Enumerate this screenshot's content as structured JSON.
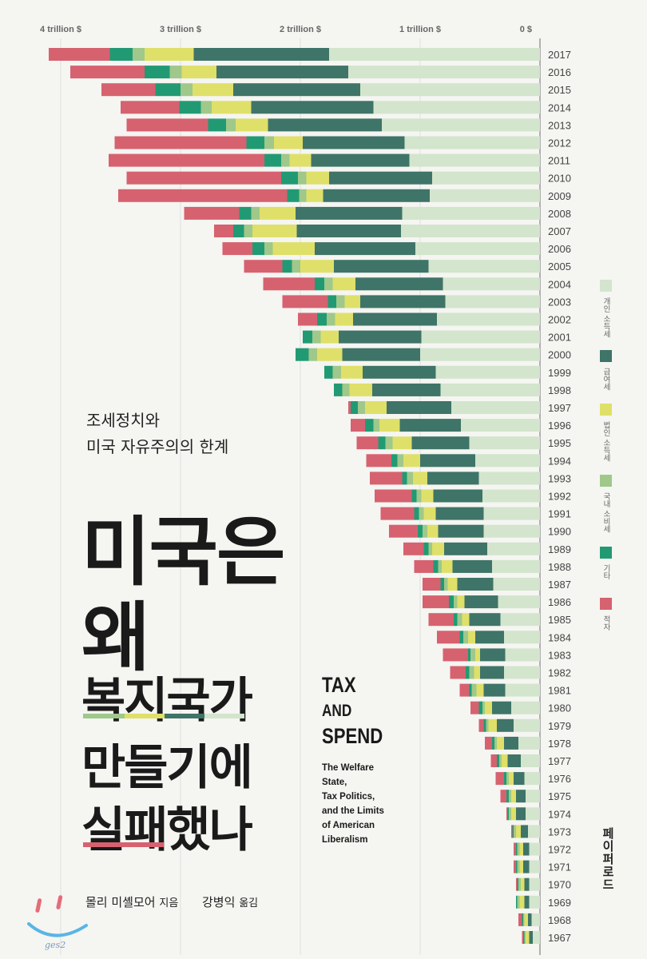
{
  "title": {
    "subtitle_line1": "조세정치와",
    "subtitle_line2": "미국 자유주의의 한계",
    "line1": "미국은",
    "line2": "왜",
    "line3": "복지국가",
    "line4": "만들기에",
    "line5": "실패했나"
  },
  "english": {
    "tax": "TAX",
    "and": "AND",
    "spend": "SPEND",
    "sub1": "The Welfare",
    "sub2": "State,",
    "sub3": "Tax Politics,",
    "sub4": "and the Limits",
    "sub5": "of American",
    "sub6": "Liberalism"
  },
  "credits": {
    "author": "몰리 미셸모어",
    "author_role": "지음",
    "translator": "강병익",
    "translator_role": "옮김"
  },
  "publisher": "페이퍼로드",
  "logo_text": "ges2",
  "colors": {
    "income": "#d3e5cd",
    "payroll": "#3f7468",
    "corporate": "#dfe069",
    "excise": "#9fc88a",
    "other": "#219a74",
    "deficit": "#d6626f",
    "underline_green": "#9fc88a",
    "underline_yellow": "#dfe069",
    "underline_teal": "#3f7468",
    "underline_light": "#d3e5cd",
    "underline_red": "#d6626f"
  },
  "chart_data": {
    "type": "bar",
    "orientation": "horizontal-stacked",
    "axis_labels": [
      "4 trillion $",
      "3 trillion $",
      "2 trillion $",
      "1 trillion $",
      "0 $"
    ],
    "axis_values": [
      4,
      3,
      2,
      1,
      0
    ],
    "unit": "trillion $",
    "xlim": [
      0,
      4.1
    ],
    "series": [
      {
        "name": "개인 소득세",
        "color": "#d3e5cd"
      },
      {
        "name": "급여세",
        "color": "#3f7468"
      },
      {
        "name": "법인 소득세",
        "color": "#dfe069"
      },
      {
        "name": "국내 소비세",
        "color": "#9fc88a"
      },
      {
        "name": "기타",
        "color": "#219a74"
      },
      {
        "name": "적자",
        "color": "#d6626f"
      }
    ],
    "rows": [
      {
        "year": "2017",
        "values": [
          1.76,
          1.13,
          0.41,
          0.1,
          0.19,
          0.51
        ]
      },
      {
        "year": "2016",
        "values": [
          1.6,
          1.1,
          0.29,
          0.1,
          0.21,
          0.62
        ]
      },
      {
        "year": "2015",
        "values": [
          1.5,
          1.06,
          0.34,
          0.1,
          0.21,
          0.45
        ]
      },
      {
        "year": "2014",
        "values": [
          1.39,
          1.02,
          0.33,
          0.09,
          0.18,
          0.49
        ]
      },
      {
        "year": "2013",
        "values": [
          1.32,
          0.95,
          0.27,
          0.08,
          0.15,
          0.68
        ]
      },
      {
        "year": "2012",
        "values": [
          1.13,
          0.85,
          0.24,
          0.08,
          0.15,
          1.1
        ]
      },
      {
        "year": "2011",
        "values": [
          1.09,
          0.82,
          0.18,
          0.07,
          0.14,
          1.3
        ]
      },
      {
        "year": "2010",
        "values": [
          0.9,
          0.86,
          0.19,
          0.07,
          0.14,
          1.29
        ]
      },
      {
        "year": "2009",
        "values": [
          0.92,
          0.89,
          0.14,
          0.06,
          0.1,
          1.41
        ]
      },
      {
        "year": "2008",
        "values": [
          1.15,
          0.89,
          0.3,
          0.07,
          0.1,
          0.46
        ]
      },
      {
        "year": "2007",
        "values": [
          1.16,
          0.87,
          0.37,
          0.07,
          0.09,
          0.16
        ]
      },
      {
        "year": "2006",
        "values": [
          1.04,
          0.84,
          0.35,
          0.07,
          0.1,
          0.25
        ]
      },
      {
        "year": "2005",
        "values": [
          0.93,
          0.79,
          0.28,
          0.07,
          0.08,
          0.32
        ]
      },
      {
        "year": "2004",
        "values": [
          0.81,
          0.73,
          0.19,
          0.07,
          0.08,
          0.43
        ]
      },
      {
        "year": "2003",
        "values": [
          0.79,
          0.71,
          0.13,
          0.07,
          0.07,
          0.38
        ]
      },
      {
        "year": "2002",
        "values": [
          0.86,
          0.7,
          0.15,
          0.07,
          0.08,
          0.16
        ]
      },
      {
        "year": "2001",
        "values": [
          0.99,
          0.69,
          0.15,
          0.07,
          0.08,
          0.0
        ]
      },
      {
        "year": "2000",
        "values": [
          1.0,
          0.65,
          0.21,
          0.07,
          0.11,
          0.0
        ]
      },
      {
        "year": "1999",
        "values": [
          0.87,
          0.61,
          0.18,
          0.07,
          0.07,
          0.0
        ]
      },
      {
        "year": "1998",
        "values": [
          0.83,
          0.57,
          0.19,
          0.06,
          0.07,
          0.0
        ]
      },
      {
        "year": "1997",
        "values": [
          0.74,
          0.54,
          0.18,
          0.06,
          0.06,
          0.02
        ]
      },
      {
        "year": "1996",
        "values": [
          0.66,
          0.51,
          0.17,
          0.05,
          0.07,
          0.12
        ]
      },
      {
        "year": "1995",
        "values": [
          0.59,
          0.48,
          0.16,
          0.06,
          0.06,
          0.18
        ]
      },
      {
        "year": "1994",
        "values": [
          0.54,
          0.46,
          0.14,
          0.05,
          0.05,
          0.21
        ]
      },
      {
        "year": "1993",
        "values": [
          0.51,
          0.43,
          0.12,
          0.05,
          0.04,
          0.27
        ]
      },
      {
        "year": "1992",
        "values": [
          0.48,
          0.41,
          0.1,
          0.04,
          0.04,
          0.31
        ]
      },
      {
        "year": "1991",
        "values": [
          0.47,
          0.4,
          0.1,
          0.04,
          0.04,
          0.28
        ]
      },
      {
        "year": "1990",
        "values": [
          0.47,
          0.38,
          0.09,
          0.04,
          0.04,
          0.24
        ]
      },
      {
        "year": "1989",
        "values": [
          0.44,
          0.36,
          0.1,
          0.03,
          0.04,
          0.17
        ]
      },
      {
        "year": "1988",
        "values": [
          0.4,
          0.33,
          0.09,
          0.03,
          0.04,
          0.16
        ]
      },
      {
        "year": "1987",
        "values": [
          0.39,
          0.3,
          0.08,
          0.03,
          0.03,
          0.15
        ]
      },
      {
        "year": "1986",
        "values": [
          0.35,
          0.28,
          0.06,
          0.03,
          0.04,
          0.22
        ]
      },
      {
        "year": "1985",
        "values": [
          0.33,
          0.26,
          0.06,
          0.04,
          0.03,
          0.21
        ]
      },
      {
        "year": "1984",
        "values": [
          0.3,
          0.24,
          0.06,
          0.04,
          0.03,
          0.19
        ]
      },
      {
        "year": "1983",
        "values": [
          0.29,
          0.21,
          0.04,
          0.04,
          0.02,
          0.21
        ]
      },
      {
        "year": "1982",
        "values": [
          0.3,
          0.2,
          0.05,
          0.04,
          0.03,
          0.13
        ]
      },
      {
        "year": "1981",
        "values": [
          0.29,
          0.18,
          0.06,
          0.04,
          0.02,
          0.08
        ]
      },
      {
        "year": "1980",
        "values": [
          0.24,
          0.16,
          0.06,
          0.02,
          0.03,
          0.07
        ]
      },
      {
        "year": "1979",
        "values": [
          0.22,
          0.14,
          0.07,
          0.02,
          0.02,
          0.04
        ]
      },
      {
        "year": "1978",
        "values": [
          0.18,
          0.12,
          0.06,
          0.02,
          0.02,
          0.06
        ]
      },
      {
        "year": "1977",
        "values": [
          0.16,
          0.11,
          0.05,
          0.02,
          0.02,
          0.05
        ]
      },
      {
        "year": "1976",
        "values": [
          0.13,
          0.09,
          0.04,
          0.02,
          0.02,
          0.07
        ]
      },
      {
        "year": "1975",
        "values": [
          0.12,
          0.08,
          0.04,
          0.02,
          0.02,
          0.05
        ]
      },
      {
        "year": "1974",
        "values": [
          0.12,
          0.08,
          0.04,
          0.02,
          0.01,
          0.01
        ]
      },
      {
        "year": "1973",
        "values": [
          0.1,
          0.06,
          0.04,
          0.02,
          0.01,
          0.01
        ]
      },
      {
        "year": "1972",
        "values": [
          0.09,
          0.05,
          0.03,
          0.02,
          0.01,
          0.02
        ]
      },
      {
        "year": "1971",
        "values": [
          0.09,
          0.05,
          0.03,
          0.02,
          0.01,
          0.02
        ]
      },
      {
        "year": "1970",
        "values": [
          0.09,
          0.04,
          0.03,
          0.02,
          0.01,
          0.01
        ]
      },
      {
        "year": "1969",
        "values": [
          0.09,
          0.04,
          0.04,
          0.02,
          0.01,
          0.0
        ]
      },
      {
        "year": "1968",
        "values": [
          0.07,
          0.03,
          0.03,
          0.01,
          0.01,
          0.03
        ]
      },
      {
        "year": "1967",
        "values": [
          0.06,
          0.03,
          0.03,
          0.01,
          0.01,
          0.01
        ]
      }
    ]
  }
}
